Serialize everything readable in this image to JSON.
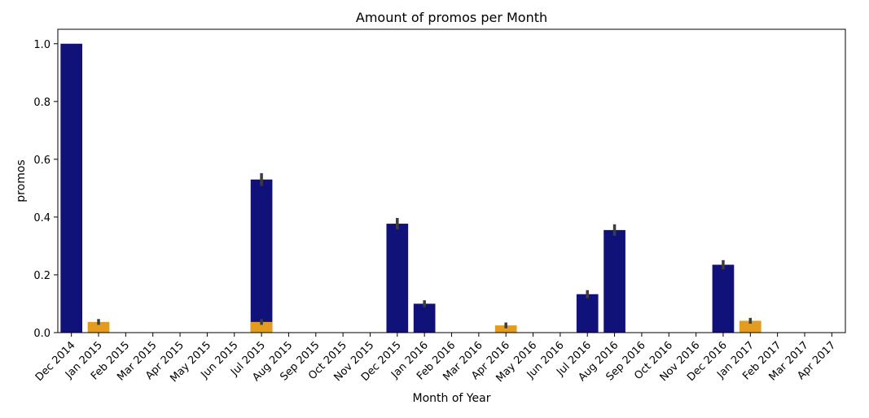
{
  "chart_data": {
    "type": "bar",
    "title": "Amount of promos per Month",
    "xlabel": "Month of Year",
    "ylabel": "promos",
    "ylim": [
      0,
      1.05
    ],
    "yticks": [
      "0.0",
      "0.2",
      "0.4",
      "0.6",
      "0.8",
      "1.0"
    ],
    "grid": false,
    "categories": [
      "Dec 2014",
      "Jan 2015",
      "Feb 2015",
      "Mar 2015",
      "Apr 2015",
      "May 2015",
      "Jun 2015",
      "Jul 2015",
      "Aug 2015",
      "Sep 2015",
      "Oct 2015",
      "Nov 2015",
      "Dec 2015",
      "Jan 2016",
      "Feb 2016",
      "Mar 2016",
      "Apr 2016",
      "May 2016",
      "Jun 2016",
      "Jul 2016",
      "Aug 2016",
      "Sep 2016",
      "Oct 2016",
      "Nov 2016",
      "Dec 2016",
      "Jan 2017",
      "Feb 2017",
      "Mar 2017",
      "Apr 2017"
    ],
    "series": [
      {
        "color": "#11117a",
        "values": [
          1.0,
          0,
          0,
          0,
          0,
          0,
          0,
          0.53,
          0,
          0,
          0,
          0,
          0.377,
          0.1,
          0,
          0,
          0,
          0,
          0,
          0.133,
          0.355,
          0,
          0,
          0,
          0.235,
          0,
          0,
          0,
          0
        ],
        "error": [
          0,
          0,
          0,
          0,
          0,
          0,
          0,
          0.022,
          0,
          0,
          0,
          0,
          0.02,
          0.012,
          0,
          0,
          0,
          0,
          0,
          0.014,
          0.02,
          0,
          0,
          0,
          0.016,
          0,
          0,
          0,
          0
        ]
      },
      {
        "color": "#e39c1f",
        "values": [
          0,
          0.037,
          0,
          0,
          0,
          0,
          0,
          0.037,
          0,
          0,
          0,
          0,
          0,
          0,
          0,
          0,
          0.025,
          0,
          0,
          0,
          0,
          0,
          0,
          0,
          0,
          0.041,
          0,
          0,
          0
        ],
        "error": [
          0,
          0.01,
          0,
          0,
          0,
          0,
          0,
          0.01,
          0,
          0,
          0,
          0,
          0,
          0,
          0,
          0,
          0.01,
          0,
          0,
          0,
          0,
          0,
          0,
          0,
          0,
          0.01,
          0,
          0,
          0
        ]
      }
    ],
    "error_bar_color": "#3d3d3d"
  }
}
